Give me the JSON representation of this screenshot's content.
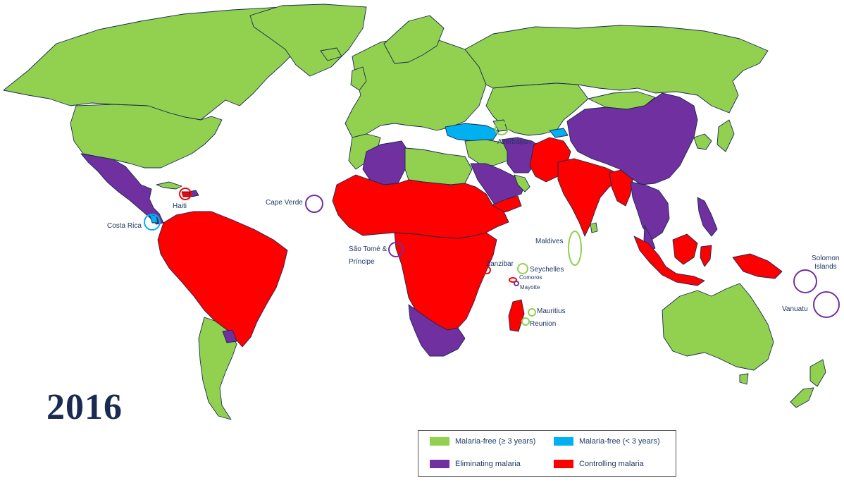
{
  "year": "2016",
  "colors": {
    "malaria_free_3plus": "#92d050",
    "malaria_free_recent": "#00b0f0",
    "eliminating": "#7030a0",
    "controlling": "#ff0000",
    "text": "#1f3864"
  },
  "legend": [
    {
      "key": "free",
      "label": "Malaria-free (≥ 3 years)",
      "color": "#92d050"
    },
    {
      "key": "recent",
      "label": "Malaria-free (< 3 years)",
      "color": "#00b0f0"
    },
    {
      "key": "elim",
      "label": "Eliminating malaria",
      "color": "#7030a0"
    },
    {
      "key": "ctrl",
      "label": "Controlling malaria",
      "color": "#ff0000"
    }
  ],
  "labels": {
    "haiti": "Haiti",
    "costa_rica": "Costa Rica",
    "cape_verde": "Cape Verde",
    "sao_tome_1": "São Tomé &",
    "sao_tome_2": "Príncipe",
    "azerbaijan": "Azerbaijan",
    "maldives": "Maldives",
    "zanzibar": "Zanzibar",
    "seychelles": "Seychelles",
    "comoros": "Comoros",
    "mayotte": "Mayotte",
    "mauritius": "Mauritius",
    "reunion": "Reunion",
    "solomon_1": "Solomon",
    "solomon_2": "Islands",
    "vanuatu": "Vanuatu"
  }
}
